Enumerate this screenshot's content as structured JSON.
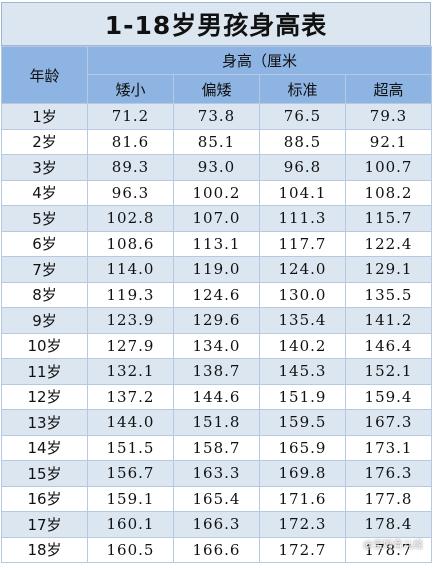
{
  "title": "1-18岁男孩身高表",
  "header": {
    "age_label": "年龄",
    "group_label": "身高（厘米",
    "columns": [
      "矮小",
      "偏矮",
      "标准",
      "超高"
    ]
  },
  "rows": [
    {
      "age": "1岁",
      "values": [
        "71.2",
        "73.8",
        "76.5",
        "79.3"
      ]
    },
    {
      "age": "2岁",
      "values": [
        "81.6",
        "85.1",
        "88.5",
        "92.1"
      ]
    },
    {
      "age": "3岁",
      "values": [
        "89.3",
        "93.0",
        "96.8",
        "100.7"
      ]
    },
    {
      "age": "4岁",
      "values": [
        "96.3",
        "100.2",
        "104.1",
        "108.2"
      ]
    },
    {
      "age": "5岁",
      "values": [
        "102.8",
        "107.0",
        "111.3",
        "115.7"
      ]
    },
    {
      "age": "6岁",
      "values": [
        "108.6",
        "113.1",
        "117.7",
        "122.4"
      ]
    },
    {
      "age": "7岁",
      "values": [
        "114.0",
        "119.0",
        "124.0",
        "129.1"
      ]
    },
    {
      "age": "8岁",
      "values": [
        "119.3",
        "124.6",
        "130.0",
        "135.5"
      ]
    },
    {
      "age": "9岁",
      "values": [
        "123.9",
        "129.6",
        "135.4",
        "141.2"
      ]
    },
    {
      "age": "10岁",
      "values": [
        "127.9",
        "134.0",
        "140.2",
        "146.4"
      ]
    },
    {
      "age": "11岁",
      "values": [
        "132.1",
        "138.7",
        "145.3",
        "152.1"
      ]
    },
    {
      "age": "12岁",
      "values": [
        "137.2",
        "144.6",
        "151.9",
        "159.4"
      ]
    },
    {
      "age": "13岁",
      "values": [
        "144.0",
        "151.8",
        "159.5",
        "167.3"
      ]
    },
    {
      "age": "14岁",
      "values": [
        "151.5",
        "158.7",
        "165.9",
        "173.1"
      ]
    },
    {
      "age": "15岁",
      "values": [
        "156.7",
        "163.3",
        "169.8",
        "176.3"
      ]
    },
    {
      "age": "16岁",
      "values": [
        "159.1",
        "165.4",
        "171.6",
        "177.8"
      ]
    },
    {
      "age": "17岁",
      "values": [
        "160.1",
        "166.3",
        "172.3",
        "178.4"
      ]
    },
    {
      "age": "18岁",
      "values": [
        "160.5",
        "166.6",
        "172.7",
        "178.7"
      ]
    }
  ],
  "watermark": "@宝妈育儿经"
}
